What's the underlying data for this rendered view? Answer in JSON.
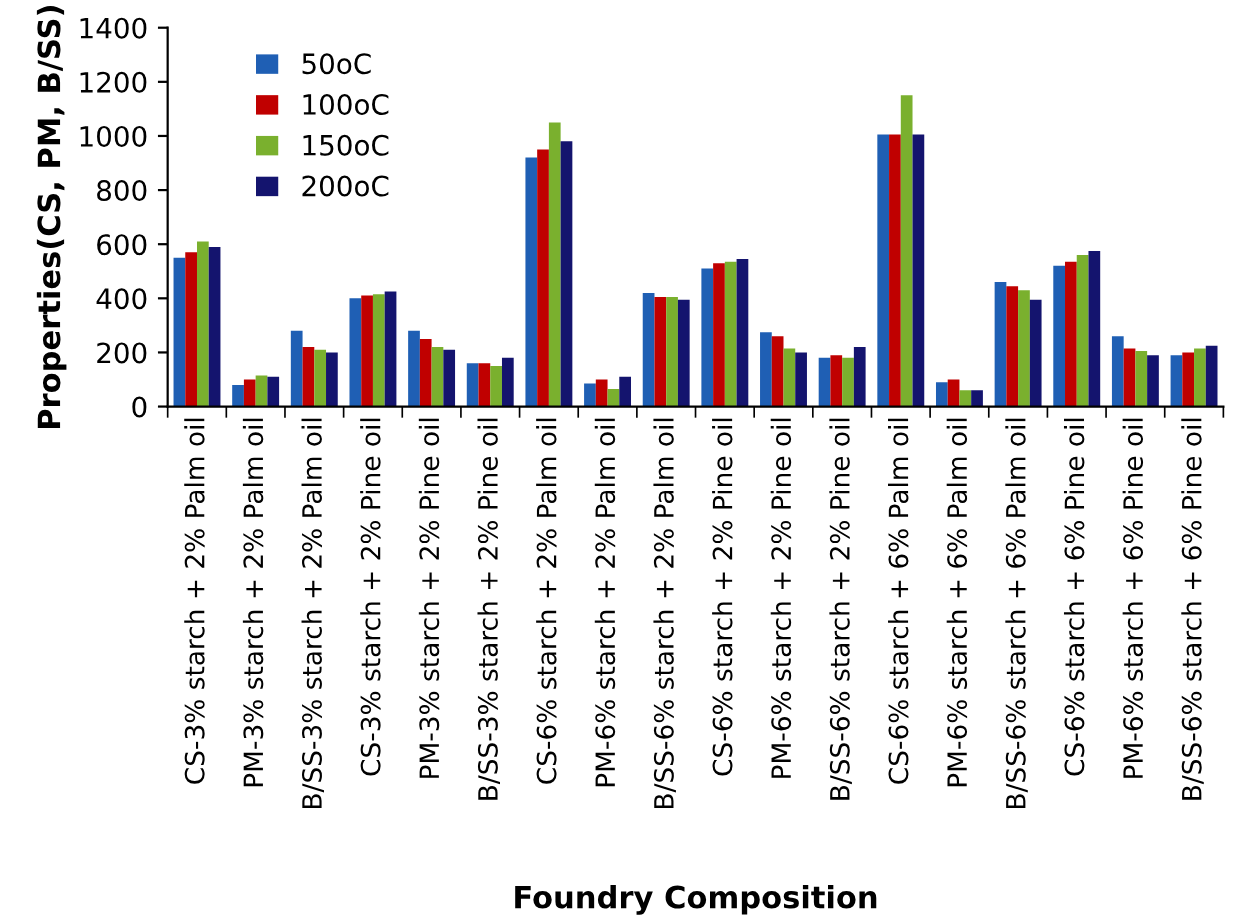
{
  "chart_data": {
    "type": "bar",
    "xlabel": "Foundry Composition",
    "ylabel": "Properties(CS, PM, B/SS)",
    "categories": [
      "CS-3% starch + 2% Palm oil",
      "PM-3% starch + 2% Palm oil",
      "B/SS-3% starch + 2% Palm oil",
      "CS-3% starch + 2% Pine oil",
      "PM-3% starch + 2% Pine oil",
      "B/SS-3% starch + 2% Pine oil",
      "CS-6% starch + 2% Palm oil",
      "PM-6% starch + 2% Palm oil",
      "B/SS-6% starch + 2% Palm oil",
      "CS-6% starch + 2% Pine oil",
      "PM-6% starch + 2% Pine oil",
      "B/SS-6% starch + 2% Pine oil",
      "CS-6% starch + 6% Palm oil",
      "PM-6% starch + 6% Palm oil",
      "B/SS-6% starch + 6% Palm oil",
      "CS-6% starch + 6% Pine oil",
      "PM-6% starch + 6% Pine oil",
      "B/SS-6% starch + 6% Pine oil"
    ],
    "series": [
      {
        "name": "50oC",
        "color": "#1f5fb4",
        "values": [
          550,
          80,
          280,
          400,
          280,
          160,
          920,
          85,
          420,
          510,
          275,
          180,
          1005,
          90,
          460,
          520,
          260,
          190
        ]
      },
      {
        "name": "100oC",
        "color": "#c00000",
        "values": [
          570,
          100,
          220,
          410,
          250,
          160,
          950,
          100,
          405,
          530,
          260,
          190,
          1005,
          100,
          445,
          535,
          215,
          200
        ]
      },
      {
        "name": "150oC",
        "color": "#7ab02e",
        "values": [
          610,
          115,
          210,
          415,
          220,
          150,
          1050,
          65,
          405,
          535,
          215,
          180,
          1150,
          60,
          430,
          560,
          205,
          215
        ]
      },
      {
        "name": "200oC",
        "color": "#14146e",
        "values": [
          590,
          110,
          200,
          425,
          210,
          180,
          980,
          110,
          395,
          545,
          200,
          220,
          1005,
          60,
          395,
          575,
          190,
          225
        ]
      }
    ],
    "ylim": [
      0,
      1400
    ],
    "yticks": [
      0,
      200,
      400,
      600,
      800,
      1000,
      1200,
      1400
    ],
    "grid": false,
    "legend": "top left"
  }
}
